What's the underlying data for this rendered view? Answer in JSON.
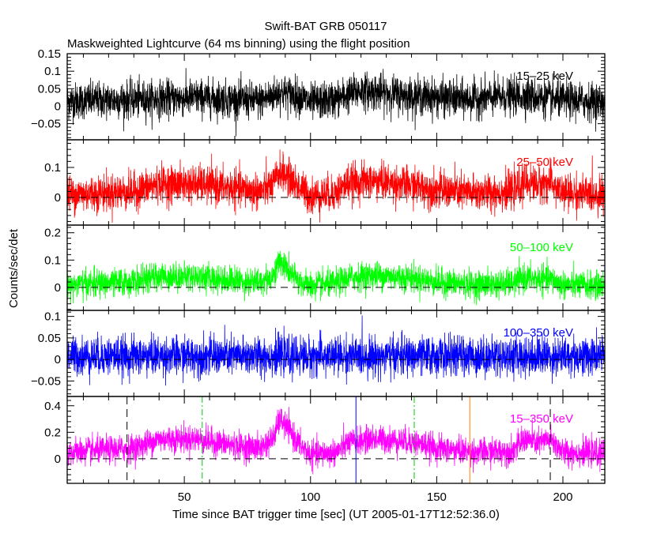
{
  "chart_data": {
    "type": "line",
    "title": "Swift-BAT GRB 050117",
    "subtitle": "Maskweighted Lightcurve (64 ms binning) using the flight position",
    "xlabel": "Time since BAT trigger time [sec] (UT 2005-01-17T12:52:36.0)",
    "ylabel": "Counts/sec/det",
    "xlim": [
      3.6,
      216.6
    ],
    "x_ticks": [
      50,
      100,
      150,
      200
    ],
    "x_tick_labels": [
      "50",
      "100",
      "150",
      "200"
    ],
    "bin_size_sec": 0.064,
    "grid": false,
    "panels": [
      {
        "name": "15-25 keV",
        "label": "15–25 keV",
        "color": "#000000",
        "ylim": [
          -0.096,
          0.15
        ],
        "y_ticks": [
          -0.05,
          0,
          0.05,
          0.1,
          0.15
        ],
        "y_tick_labels": [
          "−0.05",
          "0",
          "0.05",
          "0.1",
          "0.15"
        ],
        "zero_line": false,
        "noise": 0.026,
        "profile_t": [
          3.6,
          35,
          55,
          80,
          88,
          95,
          100,
          110,
          120,
          140,
          160,
          185,
          195,
          216.6
        ],
        "profile_v": [
          0.015,
          0.02,
          0.025,
          0.015,
          0.04,
          0.03,
          0.01,
          0.02,
          0.045,
          0.03,
          0.02,
          0.03,
          0.02,
          0.012
        ]
      },
      {
        "name": "25-50 keV",
        "label": "25–50 keV",
        "color": "#ff0000",
        "ylim": [
          -0.092,
          0.192
        ],
        "y_ticks": [
          0,
          0.1
        ],
        "y_tick_labels": [
          "0",
          "0.1"
        ],
        "zero_line": true,
        "noise": 0.03,
        "profile_t": [
          3.6,
          30,
          40,
          55,
          70,
          80,
          85,
          88,
          92,
          96,
          100,
          110,
          115,
          125,
          140,
          150,
          165,
          180,
          185,
          190,
          195,
          200,
          216.6
        ],
        "profile_v": [
          0.01,
          0.02,
          0.045,
          0.045,
          0.03,
          0.02,
          0.04,
          0.09,
          0.06,
          0.03,
          0.005,
          0.015,
          0.05,
          0.055,
          0.04,
          0.025,
          0.015,
          0.02,
          0.05,
          0.045,
          0.05,
          0.015,
          0.01
        ]
      },
      {
        "name": "50-100 keV",
        "label": "50–100 keV",
        "color": "#00ff00",
        "ylim": [
          -0.084,
          0.228
        ],
        "y_ticks": [
          0,
          0.1,
          0.2
        ],
        "y_tick_labels": [
          "0",
          "0.1",
          "0.2"
        ],
        "zero_line": true,
        "noise": 0.025,
        "profile_t": [
          3.6,
          30,
          40,
          55,
          70,
          80,
          85,
          88,
          92,
          96,
          100,
          110,
          115,
          125,
          140,
          150,
          165,
          180,
          185,
          190,
          195,
          200,
          216.6
        ],
        "profile_v": [
          0.01,
          0.02,
          0.04,
          0.04,
          0.025,
          0.02,
          0.04,
          0.1,
          0.05,
          0.02,
          0.005,
          0.015,
          0.035,
          0.045,
          0.035,
          0.02,
          0.01,
          0.015,
          0.035,
          0.03,
          0.03,
          0.01,
          0.005
        ]
      },
      {
        "name": "100-350 keV",
        "label": "100–350 keV",
        "color": "#0000ff",
        "ylim": [
          -0.086,
          0.114
        ],
        "y_ticks": [
          -0.05,
          0,
          0.05,
          0.1
        ],
        "y_tick_labels": [
          "−0.05",
          "0",
          "0.05",
          "0.1"
        ],
        "zero_line": true,
        "noise": 0.022,
        "profile_t": [
          3.6,
          216.6
        ],
        "profile_v": [
          0.008,
          0.008
        ]
      },
      {
        "name": "15-350 keV",
        "label": "15–350 keV",
        "color": "#ff00ff",
        "ylim": [
          -0.185,
          0.47
        ],
        "y_ticks": [
          0,
          0.2,
          0.4
        ],
        "y_tick_labels": [
          "0",
          "0.2",
          "0.4"
        ],
        "zero_line": true,
        "noise": 0.05,
        "profile_t": [
          3.6,
          30,
          40,
          55,
          70,
          80,
          85,
          88,
          92,
          96,
          100,
          110,
          115,
          125,
          140,
          150,
          165,
          180,
          185,
          190,
          195,
          200,
          216.6
        ],
        "profile_v": [
          0.05,
          0.08,
          0.15,
          0.15,
          0.1,
          0.08,
          0.15,
          0.3,
          0.2,
          0.1,
          0.03,
          0.05,
          0.12,
          0.15,
          0.13,
          0.08,
          0.05,
          0.06,
          0.15,
          0.12,
          0.15,
          0.05,
          0.04
        ],
        "markers": [
          {
            "t": 27.3,
            "color": "#000000",
            "style": "dashed"
          },
          {
            "t": 57.1,
            "color": "#00cc00",
            "style": "dashdot"
          },
          {
            "t": 118.0,
            "color": "#0000ff",
            "style": "solid"
          },
          {
            "t": 141.1,
            "color": "#00cc00",
            "style": "dashdot"
          },
          {
            "t": 163.1,
            "color": "#ff8000",
            "style": "solid"
          },
          {
            "t": 195.0,
            "color": "#000000",
            "style": "dashed"
          }
        ]
      }
    ]
  }
}
